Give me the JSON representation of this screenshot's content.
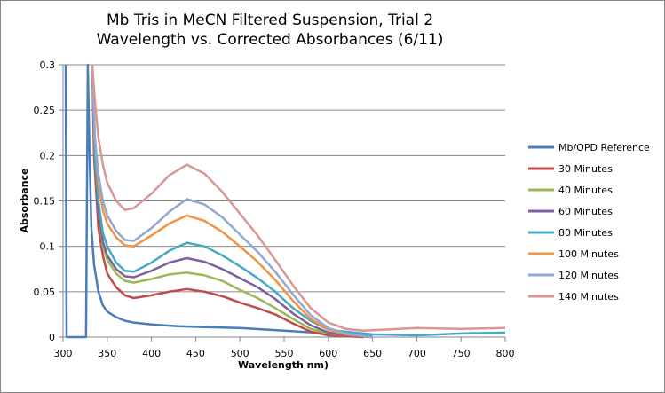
{
  "chart_data": {
    "type": "line",
    "title_line1": "Mb Tris in MeCN Filtered Suspension, Trial 2",
    "title_line2": "Wavelength vs. Corrected Absorbances (6/11)",
    "xlabel": "Wavelength nm)",
    "ylabel": "Absorbance",
    "xlim": [
      300,
      800
    ],
    "ylim": [
      0,
      0.3
    ],
    "xticks": [
      "300",
      "350",
      "400",
      "450",
      "500",
      "550",
      "600",
      "650",
      "700",
      "750",
      "800"
    ],
    "yticks": [
      "0",
      "0.05",
      "0.1",
      "0.15",
      "0.2",
      "0.25",
      "0.3"
    ],
    "grid": "horizontal",
    "legend_position": "right",
    "series": [
      {
        "name": "Mb/OPD Reference",
        "color": "#4a7ebb",
        "x": [
          303,
          304,
          326,
          328,
          330,
          332,
          335,
          340,
          345,
          350,
          360,
          370,
          380,
          400,
          430,
          460,
          500,
          550,
          600,
          650
        ],
        "y": [
          0.3,
          0.0,
          0.0,
          0.3,
          0.2,
          0.12,
          0.08,
          0.05,
          0.035,
          0.028,
          0.022,
          0.018,
          0.016,
          0.014,
          0.012,
          0.011,
          0.01,
          0.007,
          0.004,
          0.002
        ]
      },
      {
        "name": "30 Minutes",
        "color": "#be4b48",
        "x": [
          333,
          335,
          340,
          345,
          350,
          360,
          370,
          380,
          400,
          420,
          440,
          460,
          480,
          500,
          520,
          540,
          560,
          580,
          600,
          620,
          640
        ],
        "y": [
          0.3,
          0.2,
          0.12,
          0.09,
          0.07,
          0.055,
          0.046,
          0.043,
          0.046,
          0.05,
          0.053,
          0.05,
          0.045,
          0.038,
          0.032,
          0.025,
          0.015,
          0.006,
          0.002,
          0.001,
          0.0
        ]
      },
      {
        "name": "40 Minutes",
        "color": "#98b954",
        "x": [
          333,
          336,
          340,
          345,
          350,
          360,
          370,
          380,
          400,
          420,
          440,
          460,
          480,
          500,
          520,
          540,
          560,
          580,
          600,
          620,
          650
        ],
        "y": [
          0.3,
          0.2,
          0.14,
          0.1,
          0.085,
          0.07,
          0.062,
          0.06,
          0.064,
          0.069,
          0.071,
          0.068,
          0.062,
          0.052,
          0.043,
          0.032,
          0.02,
          0.009,
          0.004,
          0.002,
          0.0
        ]
      },
      {
        "name": "60 Minutes",
        "color": "#7d60a0",
        "x": [
          333,
          336,
          340,
          345,
          350,
          360,
          370,
          380,
          400,
          420,
          440,
          460,
          480,
          500,
          520,
          540,
          560,
          580,
          600,
          620,
          650
        ],
        "y": [
          0.3,
          0.2,
          0.14,
          0.105,
          0.09,
          0.075,
          0.067,
          0.066,
          0.073,
          0.082,
          0.087,
          0.083,
          0.075,
          0.065,
          0.055,
          0.042,
          0.026,
          0.013,
          0.005,
          0.002,
          0.0
        ]
      },
      {
        "name": "80 Minutes",
        "color": "#46aac5",
        "x": [
          333,
          336,
          340,
          345,
          350,
          360,
          370,
          380,
          400,
          420,
          440,
          460,
          480,
          500,
          520,
          540,
          560,
          580,
          600,
          650,
          700,
          750,
          800
        ],
        "y": [
          0.3,
          0.2,
          0.15,
          0.115,
          0.1,
          0.082,
          0.073,
          0.072,
          0.082,
          0.095,
          0.104,
          0.1,
          0.09,
          0.078,
          0.065,
          0.05,
          0.032,
          0.018,
          0.008,
          0.003,
          0.002,
          0.004,
          0.005
        ]
      },
      {
        "name": "100 Minutes",
        "color": "#f59240",
        "x": [
          333,
          336,
          340,
          345,
          350,
          360,
          370,
          380,
          400,
          420,
          440,
          460,
          480,
          500,
          520,
          540,
          560,
          580,
          600,
          620,
          650
        ],
        "y": [
          0.3,
          0.22,
          0.17,
          0.14,
          0.125,
          0.11,
          0.101,
          0.1,
          0.112,
          0.125,
          0.134,
          0.128,
          0.116,
          0.1,
          0.083,
          0.063,
          0.04,
          0.02,
          0.008,
          0.003,
          0.0
        ]
      },
      {
        "name": "120 Minutes",
        "color": "#8fa9d4",
        "x": [
          333,
          336,
          340,
          345,
          350,
          360,
          370,
          380,
          400,
          420,
          440,
          460,
          480,
          500,
          520,
          540,
          560,
          580,
          600,
          620,
          650
        ],
        "y": [
          0.3,
          0.22,
          0.18,
          0.15,
          0.134,
          0.117,
          0.107,
          0.106,
          0.12,
          0.138,
          0.152,
          0.146,
          0.132,
          0.113,
          0.094,
          0.072,
          0.047,
          0.024,
          0.01,
          0.004,
          0.0
        ]
      },
      {
        "name": "140 Minutes",
        "color": "#d99694",
        "x": [
          333,
          336,
          340,
          345,
          350,
          360,
          370,
          380,
          400,
          420,
          440,
          460,
          480,
          500,
          520,
          540,
          560,
          580,
          600,
          620,
          640,
          660,
          680,
          700,
          750,
          800
        ],
        "y": [
          0.3,
          0.26,
          0.22,
          0.19,
          0.17,
          0.15,
          0.14,
          0.142,
          0.158,
          0.178,
          0.19,
          0.18,
          0.16,
          0.136,
          0.112,
          0.085,
          0.057,
          0.032,
          0.016,
          0.009,
          0.007,
          0.008,
          0.009,
          0.01,
          0.009,
          0.01
        ]
      }
    ]
  }
}
